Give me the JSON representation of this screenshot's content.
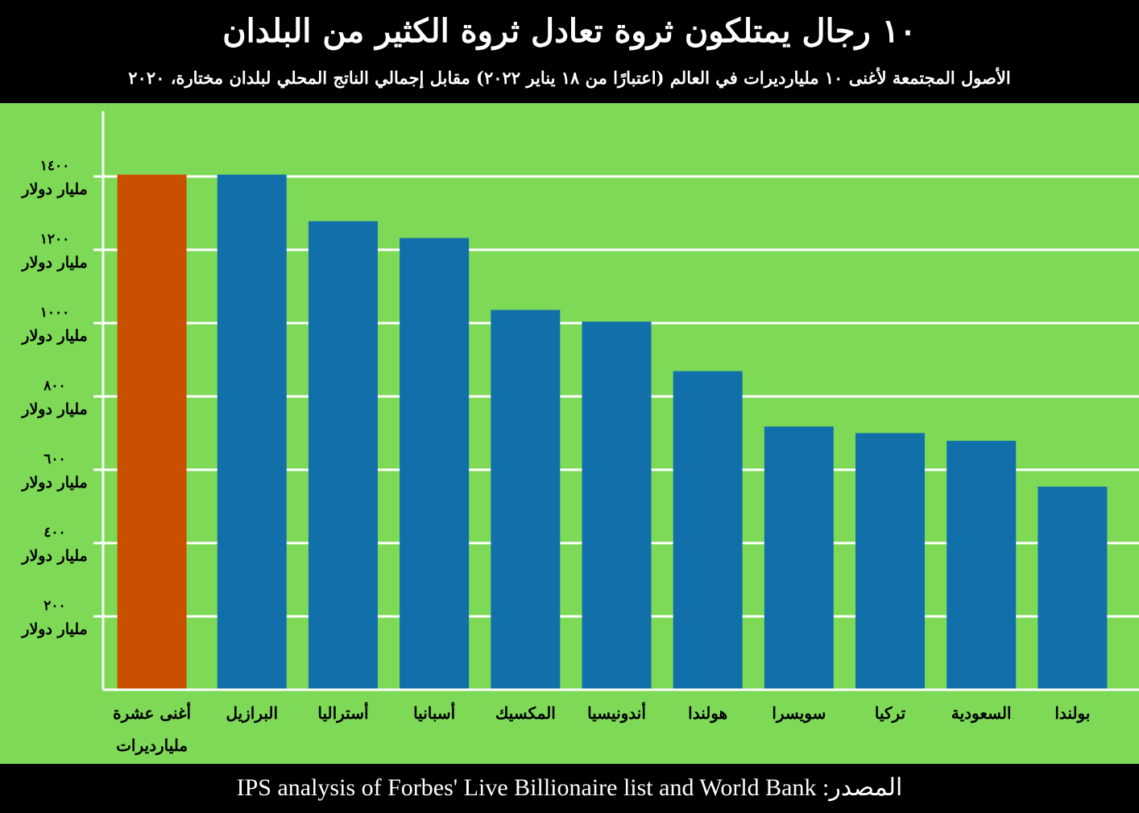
{
  "header": {
    "title": "١٠ رجال يمتلكون ثروة تعادل ثروة الكثير من البلدان",
    "subtitle": "الأصول المجتمعة لأغنى ١٠ مليارديرات في العالم (اعتبارًا من ١٨ يناير ٢٠٢٢) مقابل إجمالي الناتج المحلي لبلدان مختارة، ٢٠٢٠"
  },
  "footer": {
    "source": "المصدر: IPS analysis of Forbes' Live Billionaire list and World Bank"
  },
  "colors": {
    "background": "#7ed957",
    "highlight_bar": "#c85000",
    "country_bar": "#1170aa",
    "grid": "#ffffff",
    "frame": "#000000"
  },
  "chart_data": {
    "type": "bar",
    "orientation": "vertical",
    "categories": [
      "أغنى عشرة مليارديرات",
      "البرازيل",
      "أستراليا",
      "أسبانيا",
      "المكسيك",
      "أندونيسيا",
      "هولندا",
      "سويسرا",
      "تركيا",
      "السعودية",
      "بولندا"
    ],
    "values": [
      1405,
      1405,
      1278,
      1232,
      1036,
      1004,
      869,
      718,
      700,
      679,
      554
    ],
    "highlight_index": 0,
    "y_ticks": [
      {
        "value": 200,
        "label": "٢٠٠",
        "unit": "مليار دولار"
      },
      {
        "value": 400,
        "label": "٤٠٠",
        "unit": "مليار دولار"
      },
      {
        "value": 600,
        "label": "٦٠٠",
        "unit": "مليار دولار"
      },
      {
        "value": 800,
        "label": "٨٠٠",
        "unit": "مليار دولار"
      },
      {
        "value": 1000,
        "label": "١٠٠٠",
        "unit": "مليار دولار"
      },
      {
        "value": 1200,
        "label": "١٢٠٠",
        "unit": "مليار دولار"
      },
      {
        "value": 1400,
        "label": "١٤٠٠",
        "unit": "مليار دولار"
      }
    ],
    "ylim": [
      0,
      1600
    ],
    "grid": true,
    "legend": "none"
  }
}
